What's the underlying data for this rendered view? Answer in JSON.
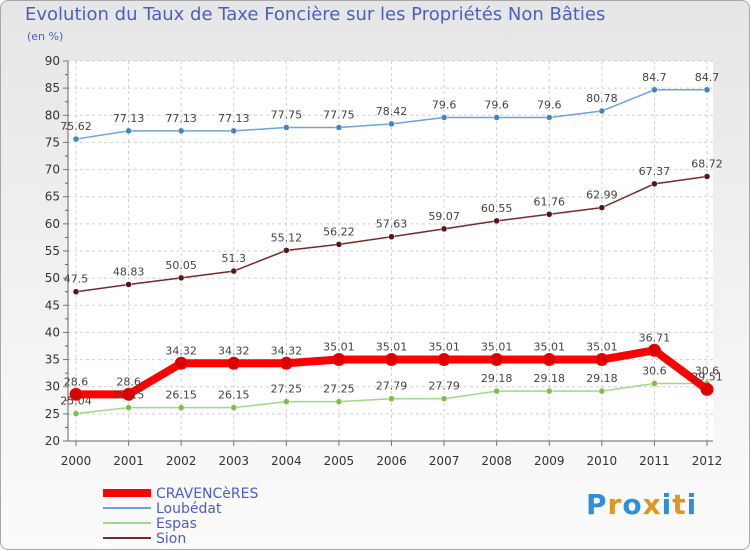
{
  "header": {
    "title": "Evolution du Taux de Taxe Foncière sur les Propriétés Non Bâties",
    "unit": "(en %)"
  },
  "logo": {
    "letters": [
      "P",
      "r",
      "o",
      "x",
      "i",
      "t",
      "i"
    ],
    "colors": [
      "#2f8fd9",
      "#e0951f",
      "#2f8fd9",
      "#e0951f",
      "#2f8fd9",
      "#e0951f",
      "#2f8fd9"
    ]
  },
  "chart_data": {
    "type": "line",
    "x": [
      "2000",
      "2001",
      "2002",
      "2003",
      "2004",
      "2005",
      "2006",
      "2007",
      "2008",
      "2009",
      "2010",
      "2011",
      "2012"
    ],
    "ylim": [
      20,
      90
    ],
    "yticks": [
      20,
      25,
      30,
      35,
      40,
      45,
      50,
      55,
      60,
      65,
      70,
      75,
      80,
      85,
      90
    ],
    "grid": true,
    "legend_position": "bottom-left",
    "series": [
      {
        "name": "CRAVENCèRES",
        "color": "#ff0000",
        "marker_color": "#d80000",
        "emphasis": true,
        "values": [
          28.6,
          28.6,
          34.32,
          34.32,
          34.32,
          35.01,
          35.01,
          35.01,
          35.01,
          35.01,
          35.01,
          36.71,
          29.51
        ],
        "labels": [
          "28.6",
          "28.6",
          "34.32",
          "34.32",
          "34.32",
          "35.01",
          "35.01",
          "35.01",
          "35.01",
          "35.01",
          "35.01",
          "36.71",
          "29.51"
        ]
      },
      {
        "name": "Loubédat",
        "color": "#6fa4d6",
        "marker_color": "#3f86c4",
        "values": [
          75.62,
          77.13,
          77.13,
          77.13,
          77.75,
          77.75,
          78.42,
          79.6,
          79.6,
          79.6,
          80.78,
          84.7,
          84.7
        ],
        "labels": [
          "75.62",
          "77.13",
          "77.13",
          "77.13",
          "77.75",
          "77.75",
          "78.42",
          "79.6",
          "79.6",
          "79.6",
          "80.78",
          "84.7",
          "84.7"
        ]
      },
      {
        "name": "Espas",
        "color": "#9fd88c",
        "marker_color": "#7dc048",
        "values": [
          25.04,
          26.15,
          26.15,
          26.15,
          27.25,
          27.25,
          27.79,
          27.79,
          29.18,
          29.18,
          29.18,
          30.6,
          30.6
        ],
        "labels": [
          "25.04",
          "26.15",
          "26.15",
          "26.15",
          "27.25",
          "27.25",
          "27.79",
          "27.79",
          "29.18",
          "29.18",
          "29.18",
          "30.6",
          "30.6"
        ]
      },
      {
        "name": "Sion",
        "color": "#7a2a2a",
        "marker_color": "#5a1515",
        "values": [
          47.5,
          48.83,
          50.05,
          51.3,
          55.12,
          56.22,
          57.63,
          59.07,
          60.55,
          61.76,
          62.99,
          67.37,
          68.72
        ],
        "labels": [
          "47.5",
          "48.83",
          "50.05",
          "51.3",
          "55.12",
          "56.22",
          "57.63",
          "59.07",
          "60.55",
          "61.76",
          "62.99",
          "67.37",
          "68.72"
        ]
      }
    ]
  }
}
